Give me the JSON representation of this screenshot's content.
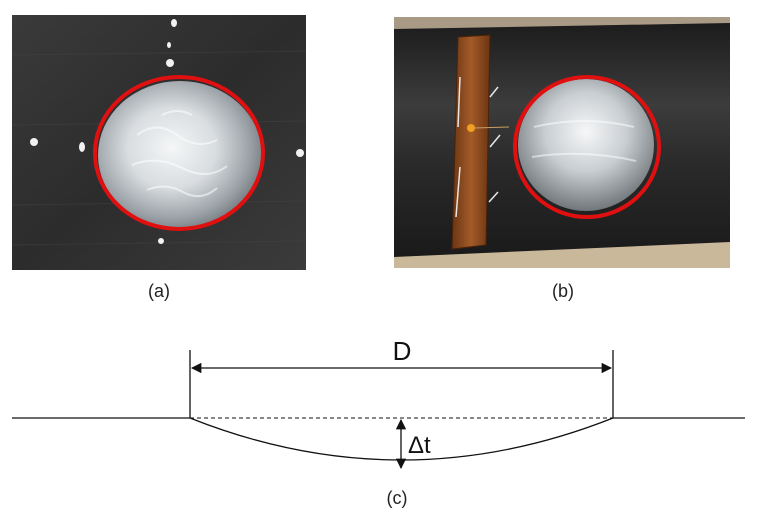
{
  "figure": {
    "captions": {
      "a": "(a)",
      "b": "(b)",
      "c": "(c)"
    },
    "diagram": {
      "diameter_label": "D",
      "depth_label": "Δt"
    }
  },
  "colors": {
    "highlight_circle": "#e01010",
    "pipe_dark": "#2b2b2b",
    "metal": "#cfd3d6",
    "wrap_band": "#8a4a1f",
    "line": "#111111"
  }
}
